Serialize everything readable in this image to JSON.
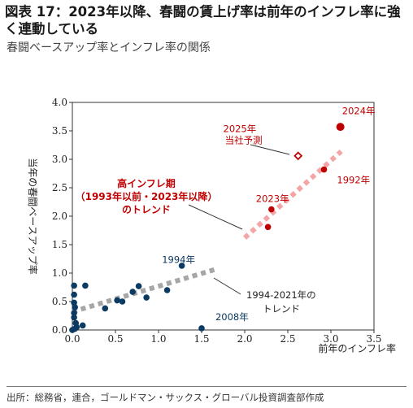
{
  "header": {
    "title": "図表 17：2023年以降、春闘の賃上げ率は前年のインフレ率に強く連動している",
    "subtitle": "春闘ベースアップ率とインフレ率の関係"
  },
  "footer": {
    "source": "出所：総務省，連合，ゴールドマン・サックス・グローバル投資調査部作成"
  },
  "chart_data": {
    "type": "scatter",
    "title": "図表 17：2023年以降、春闘の賃上げ率は前年のインフレ率に強く連動している",
    "subtitle": "春闘ベースアップ率とインフレ率の関係",
    "xlabel": "前年のインフレ率",
    "ylabel": "当年の春闘ベースアップ率",
    "xlim": [
      0,
      3.5
    ],
    "ylim": [
      0,
      4.0
    ],
    "x_ticks": [
      "0.0",
      "0.5",
      "1.0",
      "1.5",
      "2.0",
      "2.5",
      "3.0",
      "3.5"
    ],
    "y_ticks": [
      "0.0",
      "0.5",
      "1.0",
      "1.5",
      "2.0",
      "2.5",
      "3.0",
      "3.5",
      "4.0"
    ],
    "x_tick_values": [
      0,
      0.5,
      1.0,
      1.5,
      2.0,
      2.5,
      3.0,
      3.5
    ],
    "y_tick_values": [
      0,
      0.5,
      1.0,
      1.5,
      2.0,
      2.5,
      3.0,
      3.5,
      4.0
    ],
    "grid": false,
    "series": [
      {
        "name": "1994-2021年",
        "color": "#0b3a63",
        "points": [
          {
            "x": 0.02,
            "y": 0.78
          },
          {
            "x": 0.02,
            "y": 0.62
          },
          {
            "x": 0.02,
            "y": 0.48
          },
          {
            "x": 0.03,
            "y": 0.4
          },
          {
            "x": 0.02,
            "y": 0.3
          },
          {
            "x": 0.02,
            "y": 0.22
          },
          {
            "x": 0.04,
            "y": 0.12
          },
          {
            "x": 0.05,
            "y": 0.05
          },
          {
            "x": 0.03,
            "y": 0.02
          },
          {
            "x": 0.0,
            "y": 0.0
          },
          {
            "x": 0.12,
            "y": 0.08
          },
          {
            "x": 0.15,
            "y": 0.78
          },
          {
            "x": 0.38,
            "y": 0.38
          },
          {
            "x": 0.52,
            "y": 0.52
          },
          {
            "x": 0.58,
            "y": 0.5
          },
          {
            "x": 0.7,
            "y": 0.67
          },
          {
            "x": 0.77,
            "y": 0.77
          },
          {
            "x": 0.86,
            "y": 0.57
          },
          {
            "x": 1.1,
            "y": 0.7
          },
          {
            "x": 1.27,
            "y": 1.13
          },
          {
            "x": 1.5,
            "y": 0.03
          }
        ]
      },
      {
        "name": "2023年以降",
        "color": "#c00000",
        "points": [
          {
            "x": 2.27,
            "y": 1.81
          },
          {
            "x": 2.31,
            "y": 2.12
          },
          {
            "x": 2.92,
            "y": 2.82
          },
          {
            "x": 3.11,
            "y": 3.57
          }
        ]
      },
      {
        "name": "2025年当社予測",
        "color": "#c00000",
        "marker": "diamond-open",
        "points": [
          {
            "x": 2.62,
            "y": 3.06
          }
        ]
      }
    ],
    "trend_lines": [
      {
        "name": "1994-2021年のトレンド",
        "color": "#a6a6a6",
        "x": [
          0.0,
          1.65
        ],
        "y": [
          0.32,
          1.06
        ]
      },
      {
        "name": "高インフレ期のトレンド",
        "color": "#f4a6a6",
        "x": [
          2.0,
          3.12
        ],
        "y": [
          1.62,
          3.14
        ]
      }
    ],
    "point_labels": [
      {
        "text": "1994年",
        "x": 1.04,
        "y": 1.18
      },
      {
        "text": "2008年",
        "x": 1.66,
        "y": 0.17
      },
      {
        "text": "2023年",
        "x": 2.13,
        "y": 2.25
      },
      {
        "text": "1992年",
        "x": 3.07,
        "y": 2.58
      },
      {
        "text": "2024年",
        "x": 3.13,
        "y": 3.79
      },
      {
        "text": "2025年",
        "x": 1.75,
        "y": 3.48
      },
      {
        "text": "当社予測",
        "x": 1.77,
        "y": 3.28
      }
    ],
    "annotations": [
      {
        "lines": [
          "高インフレ期",
          "（1993年以前・2023年以降）",
          "のトレンド"
        ]
      },
      {
        "lines": [
          "1994-2021年の",
          "トレンド"
        ]
      }
    ]
  }
}
